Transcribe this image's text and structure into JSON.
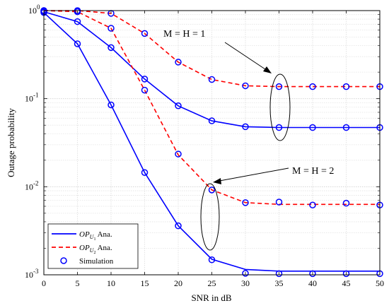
{
  "chart_data": {
    "type": "line",
    "xlabel": "SNR in dB",
    "ylabel": "Outage probability",
    "xlim": [
      0,
      50
    ],
    "ylim": [
      0.001,
      1
    ],
    "yscale": "log",
    "grid": true,
    "x_ticks": [
      "0",
      "5",
      "10",
      "15",
      "20",
      "25",
      "30",
      "35",
      "40",
      "45",
      "50"
    ],
    "y_ticks": [
      {
        "value": 1,
        "mantissa": "10",
        "exp": "0"
      },
      {
        "value": 0.1,
        "mantissa": "10",
        "exp": "-1"
      },
      {
        "value": 0.01,
        "mantissa": "10",
        "exp": "-2"
      },
      {
        "value": 0.001,
        "mantissa": "10",
        "exp": "-3"
      }
    ],
    "legend_position": "bottom-left",
    "legend": [
      {
        "label_main": "OP",
        "label_sub": "U",
        "label_subsub": "1",
        "label_rest": " Ana.",
        "style": "solid-blue"
      },
      {
        "label_main": "OP",
        "label_sub": "U",
        "label_subsub": "2",
        "label_rest": " Ana.",
        "style": "dashed-red"
      },
      {
        "label": "Simulation",
        "style": "marker-circle"
      }
    ],
    "colors": {
      "u1": "#0000ff",
      "u2": "#ff0000",
      "marker": "#0000ff"
    },
    "series": [
      {
        "id": "u1_h1",
        "user": "u1",
        "x": [
          0,
          5,
          10,
          15,
          20,
          25,
          30,
          35,
          40,
          45,
          50
        ],
        "values": [
          0.97,
          0.75,
          0.38,
          0.167,
          0.083,
          0.056,
          0.048,
          0.047,
          0.047,
          0.047,
          0.047
        ]
      },
      {
        "id": "u1_h2",
        "user": "u1",
        "x": [
          0,
          5,
          10,
          15,
          20,
          25,
          30,
          35,
          40,
          45,
          50
        ],
        "values": [
          0.95,
          0.42,
          0.085,
          0.0145,
          0.0036,
          0.0015,
          0.00115,
          0.0011,
          0.0011,
          0.0011,
          0.0011
        ]
      },
      {
        "id": "u2_h1",
        "user": "u2",
        "x": [
          0,
          5,
          10,
          15,
          20,
          25,
          30,
          35,
          40,
          45,
          50
        ],
        "values": [
          1.0,
          1.0,
          0.93,
          0.55,
          0.26,
          0.165,
          0.14,
          0.137,
          0.137,
          0.137,
          0.137
        ]
      },
      {
        "id": "u2_h2",
        "user": "u2",
        "x": [
          0,
          5,
          10,
          15,
          20,
          25,
          30,
          35,
          40,
          45,
          50
        ],
        "values": [
          1.0,
          0.97,
          0.63,
          0.125,
          0.023,
          0.0092,
          0.0066,
          0.0063,
          0.0063,
          0.0063,
          0.0063
        ]
      }
    ],
    "simulation": [
      {
        "for": "u1_h1",
        "x": [
          0,
          5,
          10,
          15,
          20,
          25,
          30,
          35,
          40,
          45,
          50
        ],
        "values": [
          0.97,
          0.75,
          0.38,
          0.167,
          0.083,
          0.056,
          0.048,
          0.047,
          0.047,
          0.047,
          0.047
        ]
      },
      {
        "for": "u1_h2",
        "x": [
          0,
          5,
          10,
          15,
          20,
          25,
          30,
          35,
          40,
          45,
          50
        ],
        "values": [
          0.95,
          0.42,
          0.085,
          0.0145,
          0.0036,
          0.00148,
          0.00104,
          0.00103,
          0.00103,
          0.00103,
          0.00103
        ]
      },
      {
        "for": "u2_h1",
        "x": [
          0,
          5,
          10,
          15,
          20,
          25,
          30,
          35,
          40,
          45,
          50
        ],
        "values": [
          1.0,
          1.0,
          0.93,
          0.55,
          0.26,
          0.165,
          0.14,
          0.137,
          0.137,
          0.137,
          0.137
        ]
      },
      {
        "for": "u2_h2",
        "x": [
          0,
          5,
          10,
          15,
          20,
          25,
          30,
          35,
          40,
          45,
          50
        ],
        "values": [
          1.0,
          0.97,
          0.63,
          0.125,
          0.0235,
          0.0092,
          0.0066,
          0.0067,
          0.0062,
          0.0065,
          0.0062
        ]
      }
    ],
    "annotations": [
      {
        "text": "M = H = 1"
      },
      {
        "text": "M = H = 2"
      }
    ]
  }
}
